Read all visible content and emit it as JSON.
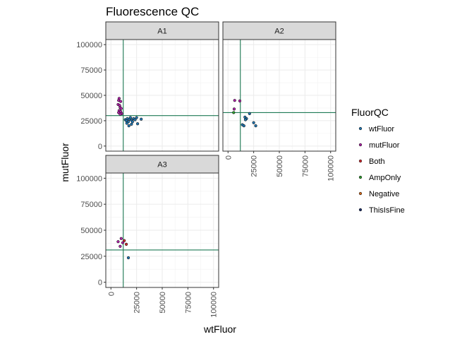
{
  "chart_data": {
    "type": "scatter",
    "title": "Fluorescence QC",
    "xlabel": "wtFluor",
    "ylabel": "mutFluor",
    "xlim": [
      -5000,
      105000
    ],
    "ylim": [
      -5000,
      105000
    ],
    "x_ticks": [
      "0",
      "25000",
      "50000",
      "75000",
      "100000"
    ],
    "y_ticks": [
      "0",
      "25000",
      "50000",
      "75000",
      "100000"
    ],
    "grid": true,
    "legend_position": "right",
    "legend": {
      "title": "FluorQC",
      "entries": [
        {
          "label": "wtFluor",
          "color": "#1f77b4"
        },
        {
          "label": "mutFluor",
          "color": "#b01fa8"
        },
        {
          "label": "Both",
          "color": "#d6272d"
        },
        {
          "label": "AmpOnly",
          "color": "#2ca02c"
        },
        {
          "label": "Negative",
          "color": "#d96b1a"
        },
        {
          "label": "ThisIsFine",
          "color": "#1b2d6b"
        }
      ]
    },
    "reference_line_color": "#1e7a55",
    "panels": [
      {
        "name": "A1",
        "vline": 12000,
        "hline": 30000,
        "points": [
          {
            "x": 8000,
            "y": 47000,
            "group": "mutFluor"
          },
          {
            "x": 7500,
            "y": 45000,
            "group": "mutFluor"
          },
          {
            "x": 9500,
            "y": 44000,
            "group": "mutFluor"
          },
          {
            "x": 7000,
            "y": 41000,
            "group": "mutFluor"
          },
          {
            "x": 8500,
            "y": 40000,
            "group": "mutFluor"
          },
          {
            "x": 9000,
            "y": 38000,
            "group": "mutFluor"
          },
          {
            "x": 10000,
            "y": 37000,
            "group": "mutFluor"
          },
          {
            "x": 8000,
            "y": 35000,
            "group": "mutFluor"
          },
          {
            "x": 9500,
            "y": 34000,
            "group": "mutFluor"
          },
          {
            "x": 7500,
            "y": 33000,
            "group": "mutFluor"
          },
          {
            "x": 10500,
            "y": 32000,
            "group": "mutFluor"
          },
          {
            "x": 9000,
            "y": 31500,
            "group": "mutFluor"
          },
          {
            "x": 14000,
            "y": 26000,
            "group": "wtFluor"
          },
          {
            "x": 15000,
            "y": 25000,
            "group": "wtFluor"
          },
          {
            "x": 16000,
            "y": 27000,
            "group": "wtFluor"
          },
          {
            "x": 17000,
            "y": 24000,
            "group": "wtFluor"
          },
          {
            "x": 18000,
            "y": 26500,
            "group": "wtFluor"
          },
          {
            "x": 19000,
            "y": 28000,
            "group": "wtFluor"
          },
          {
            "x": 20000,
            "y": 25500,
            "group": "wtFluor"
          },
          {
            "x": 21000,
            "y": 24000,
            "group": "wtFluor"
          },
          {
            "x": 22000,
            "y": 27000,
            "group": "wtFluor"
          },
          {
            "x": 23500,
            "y": 26000,
            "group": "wtFluor"
          },
          {
            "x": 25000,
            "y": 28000,
            "group": "wtFluor"
          },
          {
            "x": 26000,
            "y": 22000,
            "group": "wtFluor"
          },
          {
            "x": 17500,
            "y": 20000,
            "group": "wtFluor"
          },
          {
            "x": 20000,
            "y": 21500,
            "group": "wtFluor"
          },
          {
            "x": 15500,
            "y": 22500,
            "group": "wtFluor"
          },
          {
            "x": 29500,
            "y": 26500,
            "group": "wtFluor"
          }
        ]
      },
      {
        "name": "A2",
        "vline": 12000,
        "hline": 33000,
        "points": [
          {
            "x": 6500,
            "y": 45000,
            "group": "mutFluor"
          },
          {
            "x": 11500,
            "y": 44500,
            "group": "mutFluor"
          },
          {
            "x": 6000,
            "y": 36500,
            "group": "mutFluor"
          },
          {
            "x": 5500,
            "y": 33000,
            "group": "AmpOnly"
          },
          {
            "x": 16500,
            "y": 28500,
            "group": "wtFluor"
          },
          {
            "x": 18000,
            "y": 27000,
            "group": "wtFluor"
          },
          {
            "x": 17000,
            "y": 26000,
            "group": "wtFluor"
          },
          {
            "x": 21000,
            "y": 32000,
            "group": "wtFluor"
          },
          {
            "x": 14000,
            "y": 21000,
            "group": "wtFluor"
          },
          {
            "x": 15500,
            "y": 20000,
            "group": "wtFluor"
          },
          {
            "x": 25000,
            "y": 23000,
            "group": "wtFluor"
          },
          {
            "x": 27000,
            "y": 20000,
            "group": "wtFluor"
          }
        ]
      },
      {
        "name": "A3",
        "vline": 12000,
        "hline": 31000,
        "points": [
          {
            "x": 7000,
            "y": 39000,
            "group": "mutFluor"
          },
          {
            "x": 10000,
            "y": 42000,
            "group": "mutFluor"
          },
          {
            "x": 9000,
            "y": 34500,
            "group": "mutFluor"
          },
          {
            "x": 11500,
            "y": 38000,
            "group": "mutFluor"
          },
          {
            "x": 13000,
            "y": 40000,
            "group": "Both"
          },
          {
            "x": 15000,
            "y": 36500,
            "group": "Both"
          },
          {
            "x": 17000,
            "y": 23500,
            "group": "wtFluor"
          }
        ]
      }
    ]
  }
}
